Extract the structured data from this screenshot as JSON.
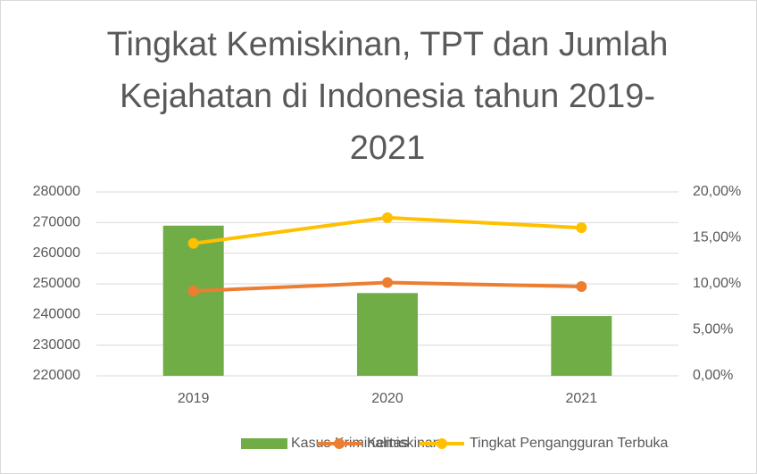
{
  "chart_data": {
    "type": "bar_line",
    "title": [
      "Tingkat Kemiskinan, TPT dan Jumlah",
      "Kejahatan di Indonesia tahun 2019-",
      "2021"
    ],
    "categories": [
      "2019",
      "2020",
      "2021"
    ],
    "series": [
      {
        "name": "Kasus Kriminalitas",
        "type": "bar",
        "color": "#70ad47",
        "values": [
          269000,
          247000,
          239500
        ]
      },
      {
        "name": "Kemiskinan",
        "type": "line",
        "axis": "y2",
        "color": "#ed7d31",
        "values": [
          9.22,
          10.14,
          9.71
        ]
      },
      {
        "name": "Tingkat Pengangguran Terbuka",
        "type": "line",
        "axis": "y2",
        "color": "#ffc000",
        "values": [
          14.4,
          17.2,
          16.1
        ]
      }
    ],
    "ylim": [
      220000,
      280000
    ],
    "yticks": [
      220000,
      230000,
      240000,
      250000,
      260000,
      270000,
      280000
    ],
    "y2lim": [
      0,
      20
    ],
    "y2ticks": [
      {
        "value": 0,
        "label": "0,00%"
      },
      {
        "value": 5,
        "label": "5,00%"
      },
      {
        "value": 10,
        "label": "10,00%"
      },
      {
        "value": 15,
        "label": "15,00%"
      },
      {
        "value": 20,
        "label": "20,00%"
      }
    ],
    "grid": true,
    "legend": "bottom"
  }
}
